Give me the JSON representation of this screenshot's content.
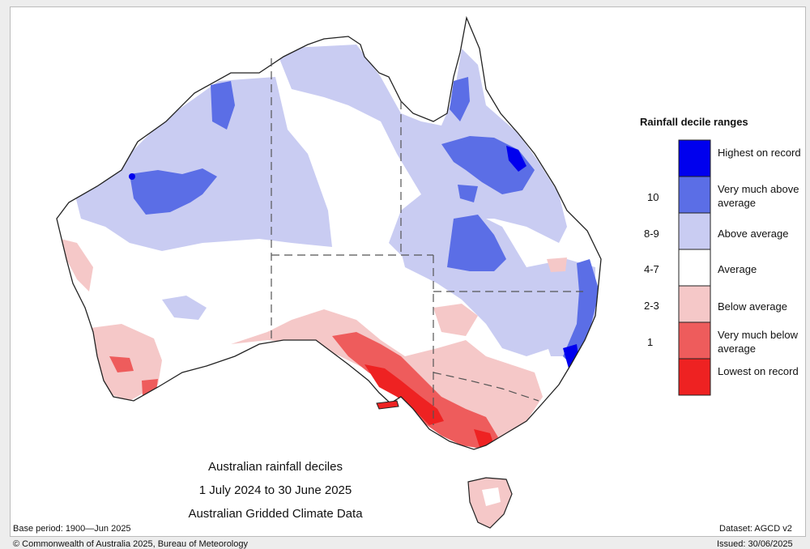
{
  "map": {
    "title_lines": [
      "Australian rainfall deciles",
      "1 July 2024 to 30 June 2025",
      "Australian Gridded Climate Data"
    ],
    "region": "Australia",
    "variable": "Rainfall deciles"
  },
  "legend": {
    "title": "Rainfall decile ranges",
    "entries": [
      {
        "label": "Highest on record",
        "decile": "",
        "color": "#0000ee"
      },
      {
        "label": "Very much above average",
        "decile": "10",
        "color": "#5b6ee6"
      },
      {
        "label": "Above average",
        "decile": "8-9",
        "color": "#c9ccf2"
      },
      {
        "label": "Average",
        "decile": "4-7",
        "color": "#ffffff"
      },
      {
        "label": "Below average",
        "decile": "2-3",
        "color": "#f5c8c8"
      },
      {
        "label": "Very much below average",
        "decile": "1",
        "color": "#ee5c5c"
      },
      {
        "label": "Lowest on record",
        "decile": "",
        "color": "#ee2222"
      }
    ]
  },
  "footer": {
    "base_period": "Base period: 1900—Jun 2025",
    "dataset": "Dataset: AGCD v2",
    "copyright": "© Commonwealth of Australia 2025, Bureau of Meteorology",
    "issued": "Issued: 30/06/2025"
  },
  "colors": {
    "outline": "#222222",
    "state_border": "#555555"
  }
}
